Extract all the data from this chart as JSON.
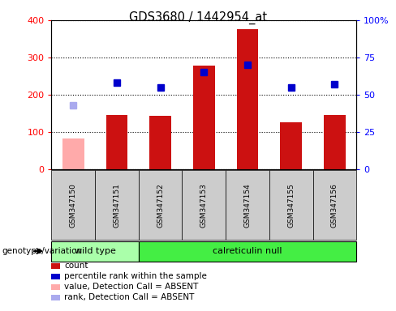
{
  "title": "GDS3680 / 1442954_at",
  "samples": [
    "GSM347150",
    "GSM347151",
    "GSM347152",
    "GSM347153",
    "GSM347154",
    "GSM347155",
    "GSM347156"
  ],
  "bar_values": [
    null,
    145,
    143,
    278,
    375,
    127,
    147
  ],
  "bar_absent_values": [
    82,
    null,
    null,
    null,
    null,
    null,
    null
  ],
  "percentile_rank": [
    null,
    58,
    55,
    65,
    70,
    55,
    57
  ],
  "percentile_rank_absent": [
    43,
    null,
    null,
    null,
    null,
    null,
    null
  ],
  "bar_color": "#cc1111",
  "bar_absent_color": "#ffaaaa",
  "rank_color": "#0000cc",
  "rank_absent_color": "#aaaaee",
  "ylim_left": [
    0,
    400
  ],
  "ylim_right": [
    0,
    100
  ],
  "yticks_left": [
    0,
    100,
    200,
    300,
    400
  ],
  "yticks_right": [
    0,
    25,
    50,
    75,
    100
  ],
  "ytick_labels_right": [
    "0",
    "25",
    "50",
    "75",
    "100%"
  ],
  "groups": [
    {
      "label": "wild type",
      "start": 0,
      "end": 2,
      "color": "#aaffaa"
    },
    {
      "label": "calreticulin null",
      "start": 2,
      "end": 7,
      "color": "#44ee44"
    }
  ],
  "genotype_label": "genotype/variation",
  "legend_items": [
    {
      "label": "count",
      "color": "#cc1111"
    },
    {
      "label": "percentile rank within the sample",
      "color": "#0000cc"
    },
    {
      "label": "value, Detection Call = ABSENT",
      "color": "#ffaaaa"
    },
    {
      "label": "rank, Detection Call = ABSENT",
      "color": "#aaaaee"
    }
  ],
  "bar_width": 0.5,
  "sample_box_color": "#cccccc",
  "plot_bg": "#ffffff"
}
